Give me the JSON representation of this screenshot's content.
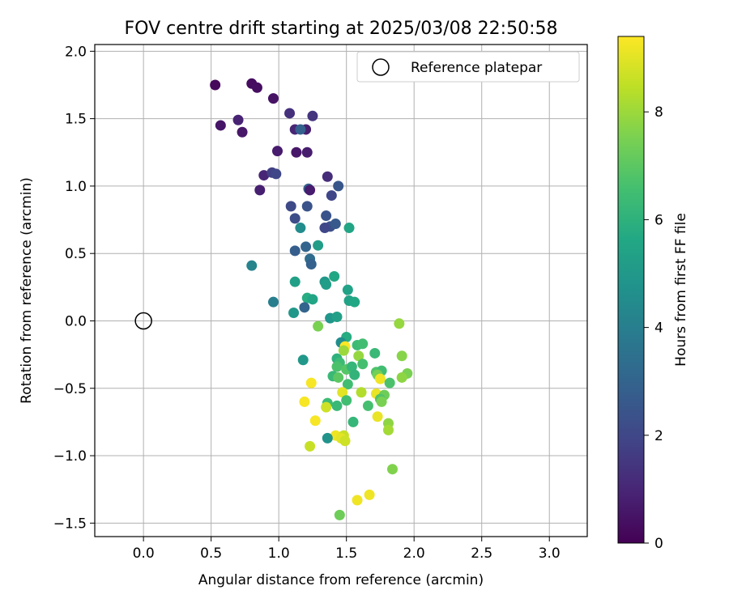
{
  "chart_data": {
    "type": "scatter",
    "title": "FOV centre drift starting at 2025/03/08 22:50:58",
    "xlabel": "Angular distance from reference (arcmin)",
    "ylabel": "Rotation from reference (arcmin)",
    "xlim": [
      -0.36,
      3.28
    ],
    "ylim": [
      -1.6,
      2.05
    ],
    "xticks": [
      0.0,
      0.5,
      1.0,
      1.5,
      2.0,
      2.5,
      3.0
    ],
    "xtick_labels": [
      "0.0",
      "0.5",
      "1.0",
      "1.5",
      "2.0",
      "2.5",
      "3.0"
    ],
    "yticks": [
      -1.5,
      -1.0,
      -0.5,
      0.0,
      0.5,
      1.0,
      1.5,
      2.0
    ],
    "ytick_labels": [
      "−1.5",
      "−1.0",
      "−0.5",
      "0.0",
      "0.5",
      "1.0",
      "1.5",
      "2.0"
    ],
    "grid": true,
    "legend": {
      "placement": "top-right",
      "entries": [
        "Reference platepar"
      ]
    },
    "reference_point": {
      "label": "Reference platepar",
      "x": 0.0,
      "y": 0.0,
      "marker": "open-circle"
    },
    "colorbar": {
      "label": "Hours from first FF file",
      "colormap": "viridis",
      "range": [
        0,
        9.4
      ],
      "ticks": [
        0,
        2,
        4,
        6,
        8
      ],
      "tick_labels": [
        "0",
        "2",
        "4",
        "6",
        "8"
      ]
    },
    "points": [
      {
        "x": 0.53,
        "y": 1.75,
        "t": 0.2
      },
      {
        "x": 0.8,
        "y": 1.76,
        "t": 0.3
      },
      {
        "x": 0.84,
        "y": 1.73,
        "t": 0.35
      },
      {
        "x": 0.96,
        "y": 1.65,
        "t": 0.45
      },
      {
        "x": 0.7,
        "y": 1.49,
        "t": 0.9
      },
      {
        "x": 0.57,
        "y": 1.45,
        "t": 0.55
      },
      {
        "x": 0.73,
        "y": 1.4,
        "t": 0.6
      },
      {
        "x": 1.08,
        "y": 1.54,
        "t": 1.3
      },
      {
        "x": 1.25,
        "y": 1.52,
        "t": 1.4
      },
      {
        "x": 1.12,
        "y": 1.42,
        "t": 1.0
      },
      {
        "x": 1.2,
        "y": 1.42,
        "t": 0.8
      },
      {
        "x": 1.16,
        "y": 1.42,
        "t": 2.9
      },
      {
        "x": 0.99,
        "y": 1.26,
        "t": 0.7
      },
      {
        "x": 1.13,
        "y": 1.25,
        "t": 0.6
      },
      {
        "x": 1.21,
        "y": 1.25,
        "t": 0.75
      },
      {
        "x": 0.89,
        "y": 1.08,
        "t": 1.0
      },
      {
        "x": 0.95,
        "y": 1.1,
        "t": 1.8
      },
      {
        "x": 0.98,
        "y": 1.09,
        "t": 2.0
      },
      {
        "x": 0.86,
        "y": 0.97,
        "t": 0.8
      },
      {
        "x": 1.36,
        "y": 1.07,
        "t": 1.2
      },
      {
        "x": 1.22,
        "y": 0.98,
        "t": 2.9
      },
      {
        "x": 1.23,
        "y": 0.97,
        "t": 0.7
      },
      {
        "x": 1.44,
        "y": 1.0,
        "t": 2.5
      },
      {
        "x": 1.39,
        "y": 0.93,
        "t": 2.0
      },
      {
        "x": 1.09,
        "y": 0.85,
        "t": 2.1
      },
      {
        "x": 1.21,
        "y": 0.85,
        "t": 2.4
      },
      {
        "x": 1.12,
        "y": 0.76,
        "t": 2.2
      },
      {
        "x": 1.35,
        "y": 0.78,
        "t": 2.4
      },
      {
        "x": 1.38,
        "y": 0.7,
        "t": 2.3
      },
      {
        "x": 1.42,
        "y": 0.72,
        "t": 2.6
      },
      {
        "x": 1.34,
        "y": 0.69,
        "t": 2.0
      },
      {
        "x": 1.16,
        "y": 0.69,
        "t": 4.5
      },
      {
        "x": 1.2,
        "y": 0.55,
        "t": 3.0
      },
      {
        "x": 1.29,
        "y": 0.56,
        "t": 5.2
      },
      {
        "x": 1.12,
        "y": 0.52,
        "t": 2.8
      },
      {
        "x": 1.23,
        "y": 0.46,
        "t": 3.3
      },
      {
        "x": 1.24,
        "y": 0.42,
        "t": 2.9
      },
      {
        "x": 1.52,
        "y": 0.69,
        "t": 5.5
      },
      {
        "x": 0.8,
        "y": 0.41,
        "t": 4.2
      },
      {
        "x": 1.41,
        "y": 0.33,
        "t": 5.6
      },
      {
        "x": 1.12,
        "y": 0.29,
        "t": 5.3
      },
      {
        "x": 1.34,
        "y": 0.29,
        "t": 5.0
      },
      {
        "x": 1.35,
        "y": 0.27,
        "t": 5.2
      },
      {
        "x": 1.51,
        "y": 0.23,
        "t": 5.4
      },
      {
        "x": 1.21,
        "y": 0.17,
        "t": 5.8
      },
      {
        "x": 1.25,
        "y": 0.16,
        "t": 5.5
      },
      {
        "x": 1.52,
        "y": 0.15,
        "t": 5.4
      },
      {
        "x": 1.56,
        "y": 0.14,
        "t": 5.6
      },
      {
        "x": 0.96,
        "y": 0.14,
        "t": 4.0
      },
      {
        "x": 1.19,
        "y": 0.1,
        "t": 3.0
      },
      {
        "x": 1.11,
        "y": 0.06,
        "t": 5.0
      },
      {
        "x": 1.38,
        "y": 0.02,
        "t": 4.9
      },
      {
        "x": 1.43,
        "y": 0.03,
        "t": 5.3
      },
      {
        "x": 1.29,
        "y": -0.04,
        "t": 7.5
      },
      {
        "x": 1.89,
        "y": -0.02,
        "t": 7.9
      },
      {
        "x": 1.5,
        "y": -0.12,
        "t": 5.8
      },
      {
        "x": 1.46,
        "y": -0.16,
        "t": 4.6
      },
      {
        "x": 1.49,
        "y": -0.19,
        "t": 9.4
      },
      {
        "x": 1.58,
        "y": -0.18,
        "t": 6.4
      },
      {
        "x": 1.62,
        "y": -0.17,
        "t": 6.5
      },
      {
        "x": 1.48,
        "y": -0.22,
        "t": 8.0
      },
      {
        "x": 1.71,
        "y": -0.24,
        "t": 6.3
      },
      {
        "x": 1.59,
        "y": -0.26,
        "t": 7.9
      },
      {
        "x": 1.91,
        "y": -0.26,
        "t": 7.7
      },
      {
        "x": 1.18,
        "y": -0.29,
        "t": 5.0
      },
      {
        "x": 1.43,
        "y": -0.28,
        "t": 6.0
      },
      {
        "x": 1.45,
        "y": -0.31,
        "t": 6.4
      },
      {
        "x": 1.62,
        "y": -0.32,
        "t": 6.6
      },
      {
        "x": 1.43,
        "y": -0.34,
        "t": 6.7
      },
      {
        "x": 1.5,
        "y": -0.36,
        "t": 6.9
      },
      {
        "x": 1.54,
        "y": -0.34,
        "t": 6.2
      },
      {
        "x": 1.56,
        "y": -0.4,
        "t": 6.1
      },
      {
        "x": 1.72,
        "y": -0.38,
        "t": 6.8
      },
      {
        "x": 1.76,
        "y": -0.37,
        "t": 6.5
      },
      {
        "x": 1.73,
        "y": -0.4,
        "t": 7.4
      },
      {
        "x": 1.4,
        "y": -0.41,
        "t": 6.3
      },
      {
        "x": 1.44,
        "y": -0.42,
        "t": 7.0
      },
      {
        "x": 1.75,
        "y": -0.43,
        "t": 9.2
      },
      {
        "x": 1.95,
        "y": -0.39,
        "t": 7.5
      },
      {
        "x": 1.91,
        "y": -0.42,
        "t": 7.8
      },
      {
        "x": 1.82,
        "y": -0.46,
        "t": 6.7
      },
      {
        "x": 1.24,
        "y": -0.46,
        "t": 9.3
      },
      {
        "x": 1.51,
        "y": -0.47,
        "t": 6.5
      },
      {
        "x": 1.61,
        "y": -0.53,
        "t": 8.3
      },
      {
        "x": 1.47,
        "y": -0.53,
        "t": 9.0
      },
      {
        "x": 1.72,
        "y": -0.54,
        "t": 9.1
      },
      {
        "x": 1.78,
        "y": -0.55,
        "t": 7.3
      },
      {
        "x": 1.75,
        "y": -0.58,
        "t": 6.8
      },
      {
        "x": 1.76,
        "y": -0.6,
        "t": 7.5
      },
      {
        "x": 1.19,
        "y": -0.6,
        "t": 9.3
      },
      {
        "x": 1.5,
        "y": -0.59,
        "t": 6.5
      },
      {
        "x": 1.36,
        "y": -0.61,
        "t": 6.4
      },
      {
        "x": 1.43,
        "y": -0.63,
        "t": 6.3
      },
      {
        "x": 1.66,
        "y": -0.63,
        "t": 6.6
      },
      {
        "x": 1.35,
        "y": -0.64,
        "t": 8.7
      },
      {
        "x": 1.73,
        "y": -0.71,
        "t": 9.1
      },
      {
        "x": 1.27,
        "y": -0.74,
        "t": 9.3
      },
      {
        "x": 1.55,
        "y": -0.75,
        "t": 6.2
      },
      {
        "x": 1.81,
        "y": -0.76,
        "t": 7.8
      },
      {
        "x": 1.81,
        "y": -0.81,
        "t": 8.1
      },
      {
        "x": 1.42,
        "y": -0.85,
        "t": 9.2
      },
      {
        "x": 1.48,
        "y": -0.85,
        "t": 8.6
      },
      {
        "x": 1.46,
        "y": -0.87,
        "t": 9.0
      },
      {
        "x": 1.36,
        "y": -0.87,
        "t": 4.8
      },
      {
        "x": 1.49,
        "y": -0.89,
        "t": 8.7
      },
      {
        "x": 1.23,
        "y": -0.93,
        "t": 8.6
      },
      {
        "x": 1.84,
        "y": -1.1,
        "t": 7.6
      },
      {
        "x": 1.67,
        "y": -1.29,
        "t": 9.2
      },
      {
        "x": 1.58,
        "y": -1.33,
        "t": 9.2
      },
      {
        "x": 1.45,
        "y": -1.44,
        "t": 7.3
      }
    ]
  }
}
